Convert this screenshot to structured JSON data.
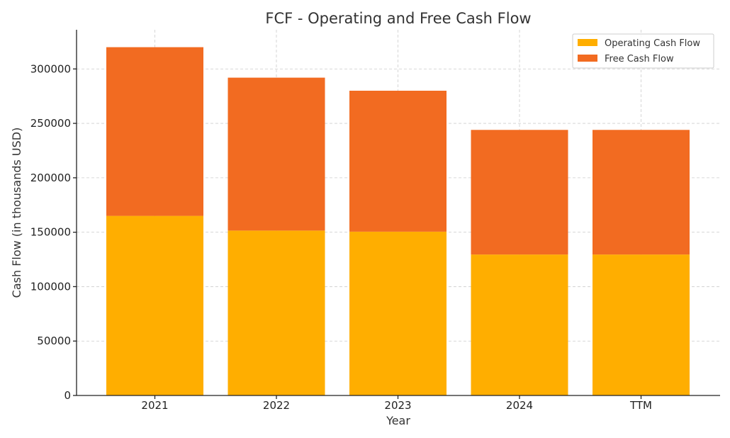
{
  "chart_data": {
    "type": "bar",
    "stacked": true,
    "title": "FCF - Operating and Free Cash Flow",
    "xlabel": "Year",
    "ylabel": "Cash Flow (in thousands USD)",
    "categories": [
      "2021",
      "2022",
      "2023",
      "2024",
      "TTM"
    ],
    "series": [
      {
        "name": "Operating Cash Flow",
        "values": [
          165000,
          151500,
          150500,
          129500,
          129500
        ],
        "color": "#FFAE00"
      },
      {
        "name": "Free Cash Flow",
        "values": [
          155000,
          140500,
          129500,
          114500,
          114500
        ],
        "color": "#F26B21"
      }
    ],
    "ylim": [
      0,
      336000
    ],
    "yticks": [
      0,
      50000,
      100000,
      150000,
      200000,
      250000,
      300000
    ],
    "grid": true,
    "legend_position": "top-right"
  }
}
